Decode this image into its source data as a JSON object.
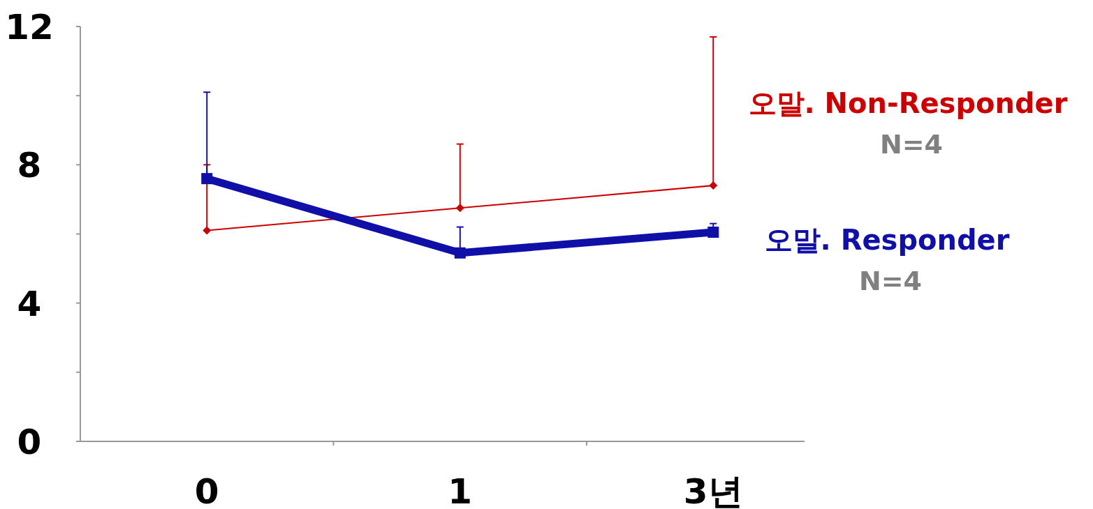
{
  "chart_data": {
    "type": "line",
    "categories": [
      "0",
      "1",
      "3년"
    ],
    "ylim": [
      0,
      12
    ],
    "yticks": [
      0,
      {
        "value": 2,
        "label": null
      },
      4,
      {
        "value": 6,
        "label": null
      },
      8,
      {
        "value": 10,
        "label": null
      },
      12
    ],
    "grid": false,
    "annotations": [
      "N=4",
      "N=4"
    ],
    "series": [
      {
        "name": "오말. Non-Responder",
        "color": "#cc0000",
        "marker": "diamond",
        "values": [
          6.1,
          6.75,
          7.4
        ],
        "errors": [
          [
            6.1,
            8.0
          ],
          [
            6.75,
            8.6
          ],
          [
            7.4,
            11.7
          ]
        ]
      },
      {
        "name": "오말. Responder",
        "color": "#1010a8",
        "marker": "square",
        "values": [
          7.6,
          5.45,
          6.05
        ],
        "errors": [
          [
            7.6,
            10.1
          ],
          [
            5.45,
            6.2
          ],
          [
            6.05,
            6.3
          ]
        ]
      }
    ]
  }
}
